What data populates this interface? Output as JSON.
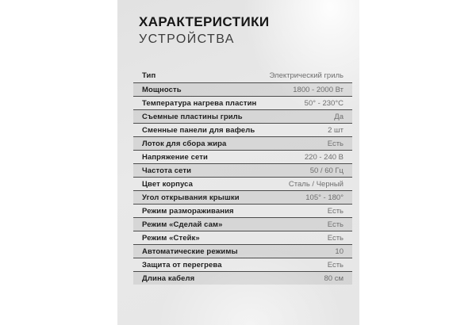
{
  "header": {
    "title_line1": "ХАРАКТЕРИСТИКИ",
    "title_line2": "УСТРОЙСТВА"
  },
  "specs": {
    "rows": [
      {
        "label": "Тип",
        "value": "Электрический гриль"
      },
      {
        "label": "Мощность",
        "value": "1800 - 2000 Вт"
      },
      {
        "label": "Температура нагрева пластин",
        "value": "50° - 230°C"
      },
      {
        "label": "Съемные пластины гриль",
        "value": "Да"
      },
      {
        "label": "Сменные панели для вафель",
        "value": "2 шт"
      },
      {
        "label": "Лоток для сбора жира",
        "value": "Есть"
      },
      {
        "label": "Напряжение сети",
        "value": "220 - 240 В"
      },
      {
        "label": "Частота сети",
        "value": "50 / 60 Гц"
      },
      {
        "label": "Цвет корпуса",
        "value": "Сталь / Черный"
      },
      {
        "label": "Угол открывания крышки",
        "value": "105° - 180°"
      },
      {
        "label": "Режим размораживания",
        "value": "Есть"
      },
      {
        "label": "Режим «Сделай сам»",
        "value": "Есть"
      },
      {
        "label": "Режим «Стейк»",
        "value": "Есть"
      },
      {
        "label": "Автоматические режимы",
        "value": "10"
      },
      {
        "label": "Защита от перегрева",
        "value": "Есть"
      },
      {
        "label": "Длина кабеля",
        "value": "80 см"
      }
    ]
  },
  "colors": {
    "card_bg": "#e7e7e7",
    "row_alt_bg": "#dadada",
    "divider": "#4c4c4c",
    "label_text": "#1e1e1e",
    "value_text": "#6e6e6e",
    "title_text": "#161616"
  }
}
